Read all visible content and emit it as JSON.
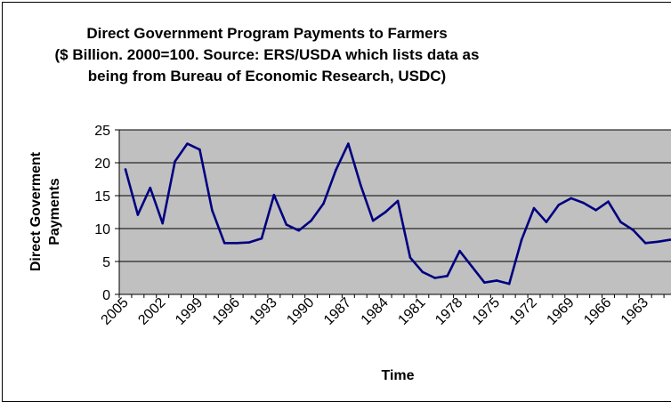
{
  "chart_data": {
    "type": "line",
    "title_lines": [
      "Direct Government Program Payments to Farmers",
      "($ Billion. 2000=100. Source: ERS/USDA which lists data as",
      "being from Bureau of Economic Research, USDC)"
    ],
    "xlabel": "Time",
    "ylabel_lines": [
      "Direct Goverment",
      "Payments"
    ],
    "x_reversed": true,
    "x_tick_labels": [
      "2005",
      "2002",
      "1999",
      "1996",
      "1993",
      "1990",
      "1987",
      "1984",
      "1981",
      "1978",
      "1975",
      "1972",
      "1969",
      "1966",
      "1963"
    ],
    "ylim": [
      0,
      25
    ],
    "y_ticks": [
      0,
      5,
      10,
      15,
      20,
      25
    ],
    "grid": true,
    "plot_background": "#c0c0c0",
    "line_color": "#000080",
    "series": [
      {
        "x": [
          2005,
          2004,
          2003,
          2002,
          2001,
          2000,
          1999,
          1998,
          1997,
          1996,
          1995,
          1994,
          1993,
          1992,
          1991,
          1990,
          1989,
          1988,
          1987,
          1986,
          1985,
          1984,
          1983,
          1982,
          1981,
          1980,
          1979,
          1978,
          1977,
          1976,
          1975,
          1974,
          1973,
          1972,
          1971,
          1970,
          1969,
          1968,
          1967,
          1966,
          1965,
          1964,
          1963,
          1962,
          1961
        ],
        "values": [
          19.0,
          12.1,
          16.2,
          10.8,
          20.2,
          22.9,
          22.0,
          12.8,
          7.8,
          7.8,
          7.9,
          8.5,
          15.1,
          10.6,
          9.7,
          11.2,
          13.8,
          18.9,
          22.9,
          16.6,
          11.2,
          12.5,
          14.2,
          5.6,
          3.4,
          2.5,
          2.8,
          6.6,
          4.2,
          1.8,
          2.1,
          1.6,
          8.3,
          13.1,
          11.0,
          13.6,
          14.6,
          13.9,
          12.8,
          14.1,
          11.0,
          9.8,
          7.8,
          8.0,
          8.3
        ]
      }
    ]
  }
}
